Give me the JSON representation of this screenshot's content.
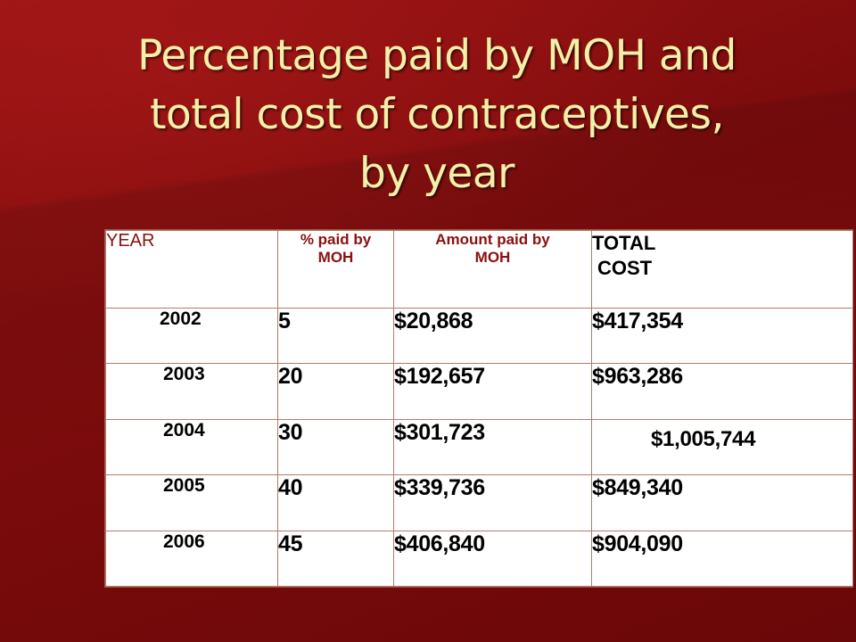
{
  "slide": {
    "title_lines": [
      "Percentage paid by MOH and",
      "total cost of contraceptives,",
      "by year"
    ],
    "colors": {
      "background": "#7a0a0b",
      "title": "#f4f0a8",
      "header_text": "#8a1010",
      "table_background": "#ffffff"
    }
  },
  "table": {
    "headers": {
      "year": "YEAR",
      "pct_paid_line1": "% paid by",
      "pct_paid_line2": "MOH",
      "amount_paid_line1": "Amount paid by",
      "amount_paid_line2": "MOH",
      "total_line1": "TOTAL",
      "total_line2": "COST"
    },
    "rows": [
      {
        "year": "2002",
        "pct": "5",
        "amount": "$20,868",
        "total": "$417,354"
      },
      {
        "year": "2003",
        "pct": "20",
        "amount": "$192,657",
        "total": "$963,286"
      },
      {
        "year": "2004",
        "pct": "30",
        "amount": "$301,723",
        "total": "$1,005,744"
      },
      {
        "year": "2005",
        "pct": "40",
        "amount": "$339,736",
        "total": "$849,340"
      },
      {
        "year": "2006",
        "pct": "45",
        "amount": "$406,840",
        "total": "$904,090"
      }
    ]
  }
}
